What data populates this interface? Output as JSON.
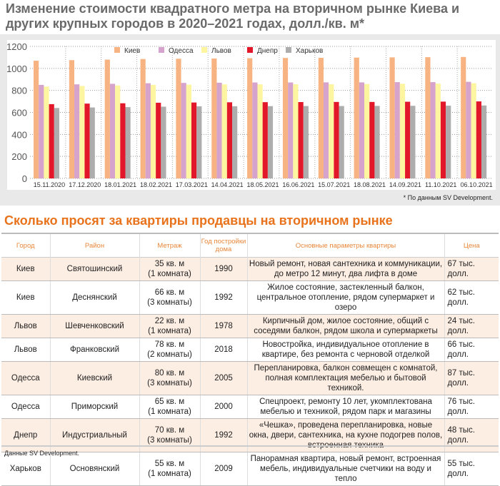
{
  "title": "Изменение стоимости квадратного метра на вторичном рынке Киева и других крупных городов в 2020–2021 годах, долл./кв. м*",
  "footnote": "* По данным SV Development.",
  "colors": {
    "Киев": "#f7b381",
    "Одесса": "#d6a3cc",
    "Львов": "#fdf5a0",
    "Днепр": "#e3172a",
    "Харьков": "#adadad"
  },
  "chart_data": {
    "type": "bar",
    "title": "Изменение стоимости квадратного метра на вторичном рынке Киева и других крупных городов в 2020–2021 годах, долл./кв. м*",
    "categories": [
      "15.11.2020",
      "17.12.2020",
      "18.01.2021",
      "18.02.2021",
      "17.03.2021",
      "14.04.2021",
      "18.05.2021",
      "16.06.2021",
      "15.07.2021",
      "18.08.2021",
      "14.09.2021",
      "11.10.2021",
      "06.10.2021"
    ],
    "series": [
      {
        "name": "Киев",
        "values": [
          1070,
          1075,
          1080,
          1085,
          1088,
          1090,
          1093,
          1095,
          1096,
          1098,
          1100,
          1102,
          1104
        ]
      },
      {
        "name": "Одесса",
        "values": [
          850,
          855,
          860,
          865,
          868,
          870,
          872,
          872,
          873,
          873,
          875,
          875,
          878
        ]
      },
      {
        "name": "Львов",
        "values": [
          835,
          840,
          845,
          850,
          852,
          855,
          855,
          856,
          856,
          858,
          860,
          862,
          865
        ]
      },
      {
        "name": "Днепр",
        "values": [
          675,
          680,
          683,
          688,
          690,
          692,
          693,
          694,
          695,
          695,
          697,
          698,
          700
        ]
      },
      {
        "name": "Харьков",
        "values": [
          640,
          645,
          648,
          652,
          655,
          656,
          657,
          658,
          658,
          659,
          660,
          661,
          663
        ]
      }
    ],
    "yticks": [
      0,
      200,
      400,
      600,
      800,
      1000,
      1200
    ],
    "ylim": [
      0,
      1200
    ],
    "grid": true,
    "legend": "top"
  },
  "section2_title": "Сколько просят за квартиры продавцы на вторичном рынке",
  "table": {
    "headers": [
      "Город",
      "Район",
      "Метраж",
      "Год постройки дома",
      "Основные параметры квартиры",
      "Цена"
    ],
    "rows": [
      {
        "city": "Киев",
        "district": "Святошинский",
        "area": "35 кв. м",
        "rooms": "(1 комната)",
        "year": "1990",
        "params": "Новый ремонт, новая сантехника и коммуникации, до метро 12 минут, два лифта в доме",
        "price": "67 тыс. долл."
      },
      {
        "city": "Киев",
        "district": "Деснянский",
        "area": "66 кв. м",
        "rooms": "(3 комнаты)",
        "year": "1992",
        "params": "Жилое состояние, застекленный балкон, центральное отопление, рядом супермаркет и озеро",
        "price": "62 тыс. долл."
      },
      {
        "city": "Львов",
        "district": "Шевченковский",
        "area": "22 кв. м",
        "rooms": "(1 комната)",
        "year": "1978",
        "params": "Кирпичный дом, жилое состояние, общий с соседями балкон, рядом школа и супермаркеты",
        "price": "24 тыс. долл."
      },
      {
        "city": "Львов",
        "district": "Франковский",
        "area": "78 кв. м",
        "rooms": "(2 комнаты)",
        "year": "2018",
        "params": "Новостройка, индивидуальное отопление в квартире, без ремонта с черновой отделкой",
        "price": "66 тыс. долл."
      },
      {
        "city": "Одесса",
        "district": "Киевский",
        "area": "80 кв. м",
        "rooms": "(3 комнаты)",
        "year": "2005",
        "params": "Перепланировка, балкон совмещен с комнатой, полная комплектация мебелью и бытовой техникой.",
        "price": "87 тыс. долл."
      },
      {
        "city": "Одесса",
        "district": "Приморский",
        "area": "65 кв. м",
        "rooms": "(1 комната)",
        "year": "2000",
        "params": "Спецпроект, ремонту 10 лет, укомплектована мебелью и техникой, рядом парк и магазины",
        "price": "76 тыс. долл."
      },
      {
        "city": "Днепр",
        "district": "Индустриальный",
        "area": "70 кв. м",
        "rooms": "(3 комнаты)",
        "year": "1992",
        "params": "«Чешка», проведена перепланировка, новые окна, двери, сантехника, на кухне подогрев полов, встроенная техника",
        "price": "48 тыс. долл."
      },
      {
        "city": "Харьков",
        "district": "Основянский",
        "area": "55 кв. м",
        "rooms": "(1 комната)",
        "year": "2009",
        "params": "Панорамная квартира, новый ремонт, встроенная мебель, индивидуальные счетчики на воду и тепло",
        "price": "55 тыс. долл."
      }
    ]
  },
  "source": "Данные SV Development."
}
